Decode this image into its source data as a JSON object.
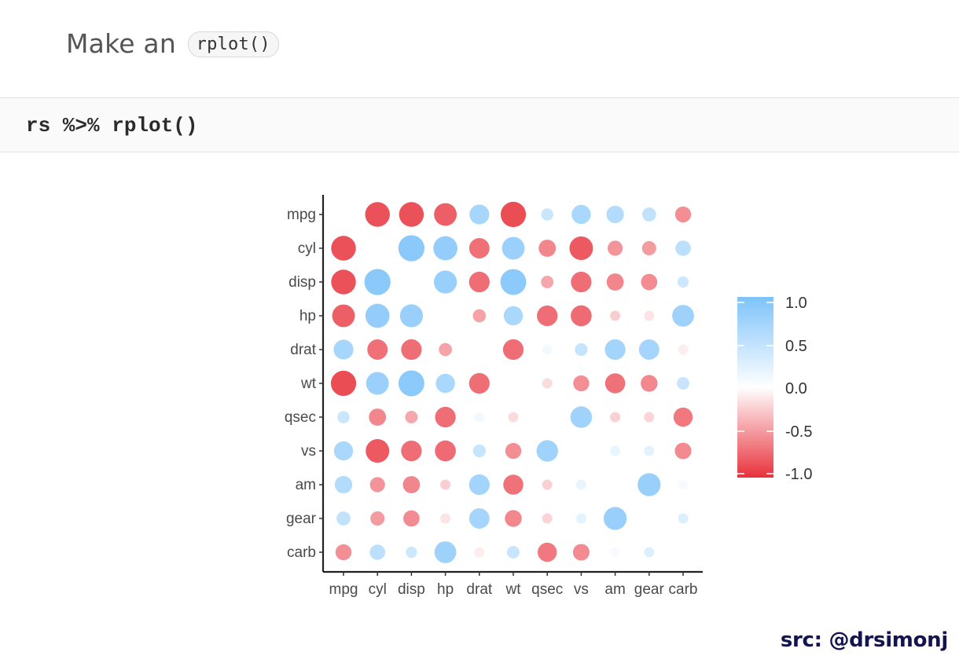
{
  "text": {
    "intro_prefix": "Make an",
    "intro_code": "rplot()",
    "code": "rs %>% rplot()",
    "credit": "src: @drsimonj"
  },
  "colors": {
    "negative": "#e8323c",
    "neutral": "#ffffff",
    "positive": "#7ec3fa"
  },
  "chart_data": {
    "type": "heatmap",
    "variables": [
      "mpg",
      "cyl",
      "disp",
      "hp",
      "drat",
      "wt",
      "qsec",
      "vs",
      "am",
      "gear",
      "carb"
    ],
    "x_labels": [
      "mpg",
      "cyl",
      "disp",
      "hp",
      "drat",
      "wt",
      "qsec",
      "vs",
      "am",
      "gear",
      "carb"
    ],
    "legend": {
      "position": "right",
      "ticks": [
        "1.0",
        "0.5",
        "0.0",
        "-0.5",
        "-1.0"
      ],
      "range": [
        -1,
        1
      ]
    },
    "grid": false,
    "values": [
      [
        null,
        -0.85,
        -0.85,
        -0.78,
        0.68,
        -0.87,
        0.42,
        0.66,
        0.6,
        0.48,
        -0.55
      ],
      [
        -0.85,
        null,
        0.9,
        0.83,
        -0.7,
        0.78,
        -0.59,
        -0.81,
        -0.52,
        -0.49,
        0.53
      ],
      [
        -0.85,
        0.9,
        null,
        0.79,
        -0.71,
        0.89,
        -0.43,
        -0.71,
        -0.59,
        -0.56,
        0.39
      ],
      [
        -0.78,
        0.83,
        0.79,
        null,
        -0.45,
        0.66,
        -0.71,
        -0.72,
        -0.24,
        -0.13,
        0.75
      ],
      [
        0.68,
        -0.7,
        -0.71,
        -0.45,
        null,
        -0.71,
        0.09,
        0.44,
        0.71,
        0.7,
        -0.09
      ],
      [
        -0.87,
        0.78,
        0.89,
        0.66,
        -0.71,
        null,
        -0.17,
        -0.55,
        -0.69,
        -0.58,
        0.43
      ],
      [
        0.42,
        -0.59,
        -0.43,
        -0.71,
        0.09,
        -0.17,
        null,
        0.74,
        -0.23,
        -0.21,
        -0.66
      ],
      [
        0.66,
        -0.81,
        -0.71,
        -0.72,
        0.44,
        -0.55,
        0.74,
        null,
        0.17,
        0.21,
        -0.57
      ],
      [
        0.6,
        -0.52,
        -0.59,
        -0.24,
        0.71,
        -0.69,
        -0.23,
        0.17,
        null,
        0.79,
        0.06
      ],
      [
        0.48,
        -0.49,
        -0.56,
        -0.13,
        0.7,
        -0.58,
        -0.21,
        0.21,
        0.79,
        null,
        0.27
      ],
      [
        -0.55,
        0.53,
        0.39,
        0.75,
        -0.09,
        0.43,
        -0.66,
        -0.57,
        0.06,
        0.27,
        null
      ]
    ]
  }
}
